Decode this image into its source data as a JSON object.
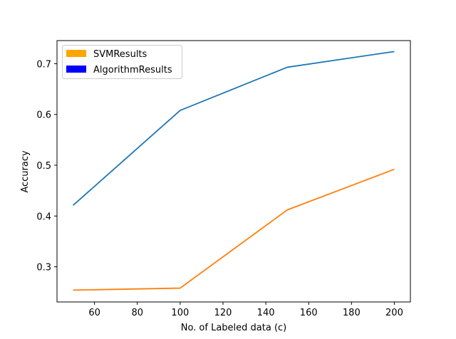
{
  "chart_data": {
    "type": "line",
    "xlabel": "No. of Labeled data      (c)",
    "ylabel": "Accuracy",
    "xlim": [
      42.5,
      207.5
    ],
    "ylim": [
      0.2307,
      0.7455
    ],
    "x_ticks": [
      60,
      80,
      100,
      120,
      140,
      160,
      180,
      200
    ],
    "y_ticks": [
      0.3,
      0.4,
      0.5,
      0.6,
      0.7
    ],
    "grid": false,
    "legend_placement": "top-left",
    "x": [
      50,
      100,
      150,
      200
    ],
    "series": [
      {
        "values": [
          0.421,
          0.608,
          0.693,
          0.724
        ],
        "color": "#1f77b4"
      },
      {
        "values": [
          0.254,
          0.258,
          0.412,
          0.492
        ],
        "color": "#ff7f0e"
      }
    ],
    "legend": [
      {
        "label": "SVMResults",
        "color": "#ffa500"
      },
      {
        "label": "AlgorithmResults",
        "color": "#0000ff"
      }
    ]
  }
}
